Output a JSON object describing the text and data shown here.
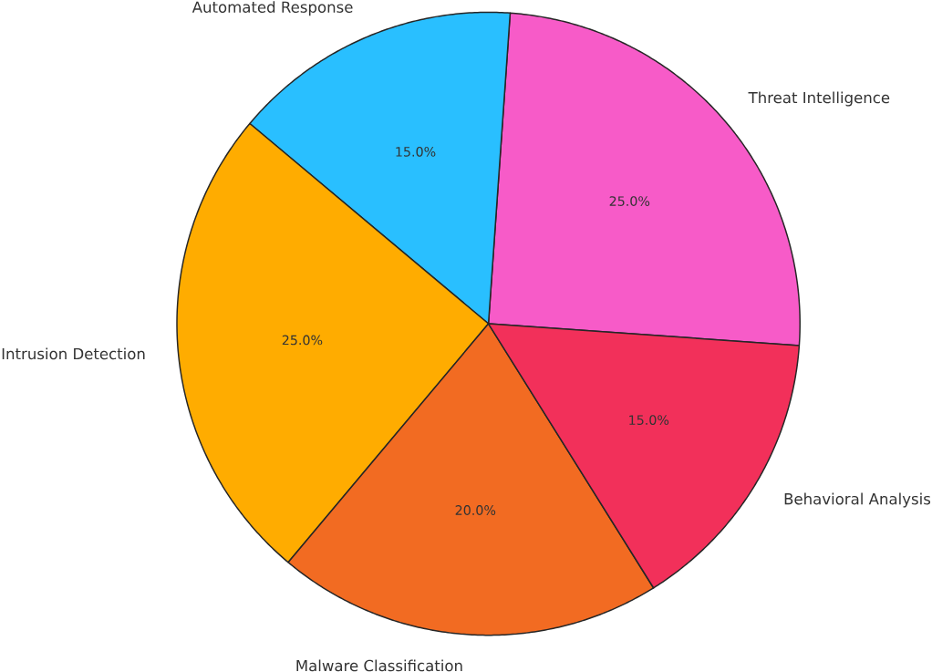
{
  "chart_data": {
    "type": "pie",
    "categories": [
      "Threat Intelligence",
      "Automated Response",
      "Intrusion Detection",
      "Malware Classification",
      "Behavioral Analysis"
    ],
    "values": [
      25,
      15,
      25,
      20,
      15
    ],
    "colors": [
      "#f75bc8",
      "#29bfff",
      "#ffac00",
      "#f26b22",
      "#f2305a"
    ],
    "value_labels": [
      "25.0%",
      "15.0%",
      "25.0%",
      "20.0%",
      "15.0%"
    ]
  }
}
